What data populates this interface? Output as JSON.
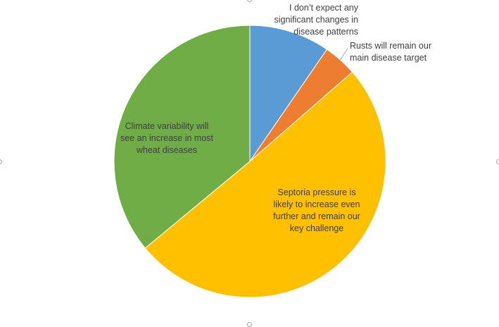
{
  "chart_data": {
    "type": "pie",
    "title": "",
    "slices": [
      {
        "label": "I don't expect any significant changes in disease patterns",
        "label_lines": [
          "I don’t expect any",
          "significant changes in",
          "disease patterns"
        ],
        "value": 9.6,
        "color": "#5b9bd5"
      },
      {
        "label": "Rusts will remain our main disease target",
        "label_lines": [
          "Rusts will remain our",
          "main disease target"
        ],
        "value": 4.0,
        "color": "#ed7d31"
      },
      {
        "label": "Septoria pressure is likely to increase even further and remain our key challenge",
        "label_lines": [
          "Septoria pressure is",
          "likely to increase even",
          "further and remain our",
          "key challenge"
        ],
        "value": 50.4,
        "color": "#ffc000"
      },
      {
        "label": "Climate variability will see an increase in most wheat diseases",
        "label_lines": [
          "Climate variability will",
          "see an increase in most",
          "wheat diseases"
        ],
        "value": 36.0,
        "color": "#70ad47"
      }
    ],
    "start_angle": "12 o'clock",
    "direction": "clockwise",
    "legend": "none",
    "data_labels": "category names"
  }
}
